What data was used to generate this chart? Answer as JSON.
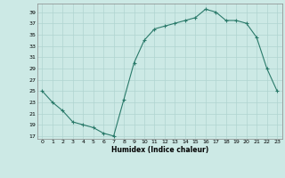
{
  "x": [
    0,
    1,
    2,
    3,
    4,
    5,
    6,
    7,
    8,
    9,
    10,
    11,
    12,
    13,
    14,
    15,
    16,
    17,
    18,
    19,
    20,
    21,
    22,
    23
  ],
  "y": [
    25,
    23,
    21.5,
    19.5,
    19,
    18.5,
    17.5,
    17,
    23.5,
    30,
    34,
    36,
    36.5,
    37,
    37.5,
    38,
    39.5,
    39,
    37.5,
    37.5,
    37,
    34.5,
    29,
    25
  ],
  "line_color": "#2a7a6a",
  "marker": "+",
  "marker_color": "#2a7a6a",
  "bg_color": "#cce9e5",
  "grid_color": "#b0d4d0",
  "xlabel": "Humidex (Indice chaleur)",
  "yticks": [
    17,
    19,
    21,
    23,
    25,
    27,
    29,
    31,
    33,
    35,
    37,
    39
  ],
  "xticks": [
    0,
    1,
    2,
    3,
    4,
    5,
    6,
    7,
    8,
    9,
    10,
    11,
    12,
    13,
    14,
    15,
    16,
    17,
    18,
    19,
    20,
    21,
    22,
    23
  ],
  "ylim": [
    16.5,
    40.5
  ],
  "xlim": [
    -0.5,
    23.5
  ]
}
